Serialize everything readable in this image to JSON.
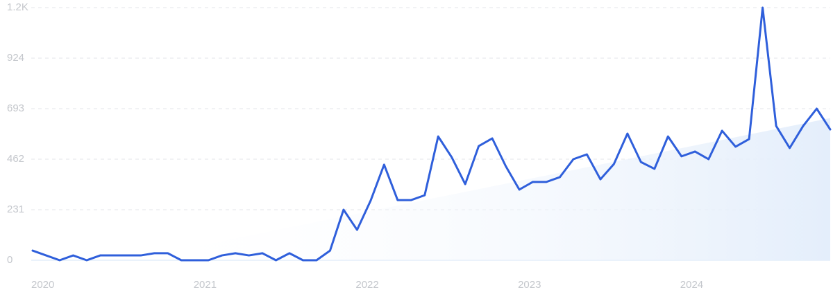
{
  "chart_data": {
    "type": "line",
    "categories": [
      "2020",
      null,
      null,
      null,
      null,
      null,
      null,
      null,
      null,
      null,
      null,
      null,
      "2021",
      null,
      null,
      null,
      null,
      null,
      null,
      null,
      null,
      null,
      null,
      null,
      "2022",
      null,
      null,
      null,
      null,
      null,
      null,
      null,
      null,
      null,
      null,
      null,
      "2023",
      null,
      null,
      null,
      null,
      null,
      null,
      null,
      null,
      null,
      null,
      null,
      "2024",
      null,
      null,
      null,
      null,
      null,
      null,
      null,
      null,
      null,
      null,
      null
    ],
    "series": [
      {
        "color": "#2f5fdb",
        "values": [
          44,
          22,
          0,
          22,
          0,
          22,
          22,
          22,
          22,
          32,
          32,
          0,
          0,
          0,
          22,
          32,
          22,
          32,
          0,
          32,
          0,
          0,
          44,
          231,
          139,
          272,
          437,
          275,
          275,
          297,
          566,
          471,
          348,
          522,
          557,
          430,
          323,
          358,
          358,
          380,
          462,
          484,
          370,
          440,
          579,
          449,
          418,
          566,
          475,
          497,
          462,
          592,
          519,
          554,
          1155,
          614,
          513,
          614,
          693,
          598
        ]
      }
    ],
    "trend": {
      "from": 7,
      "to": 59,
      "values": [
        0,
        650
      ],
      "color": "#e4eefb"
    },
    "ylim": [
      0,
      1155
    ],
    "yticks": [
      0,
      231,
      462,
      693,
      924,
      {
        "value": 1155,
        "label": "1.2K"
      }
    ],
    "grid": true
  }
}
